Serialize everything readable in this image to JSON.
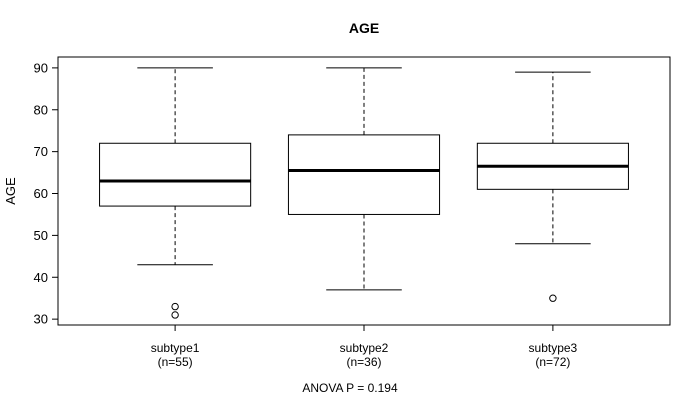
{
  "page": {
    "background": "#ffffff",
    "line_color": "#000000",
    "text_color": "#000000"
  },
  "chart_data": {
    "type": "boxplot",
    "title": "AGE",
    "ylabel": "AGE",
    "xlabel": "",
    "annotation": "ANOVA P = 0.194",
    "grid": false,
    "legend": "none",
    "yticks": [
      30,
      40,
      50,
      60,
      70,
      80,
      90
    ],
    "ylim": [
      28.6,
      92.6
    ],
    "box_fill": "#ffffff",
    "box_stroke": "#000000",
    "groups": [
      {
        "label": "subtype1",
        "sublabel": "(n=55)",
        "n": 55,
        "whisker_low": 43,
        "q1": 57,
        "median": 63,
        "q3": 72,
        "whisker_high": 90,
        "outliers": [
          33,
          31
        ]
      },
      {
        "label": "subtype2",
        "sublabel": "(n=36)",
        "n": 36,
        "whisker_low": 37,
        "q1": 55,
        "median": 65.5,
        "q3": 74,
        "whisker_high": 90,
        "outliers": []
      },
      {
        "label": "subtype3",
        "sublabel": "(n=72)",
        "n": 72,
        "whisker_low": 48,
        "q1": 61,
        "median": 66.5,
        "q3": 72,
        "whisker_high": 89,
        "outliers": [
          35
        ]
      }
    ]
  }
}
